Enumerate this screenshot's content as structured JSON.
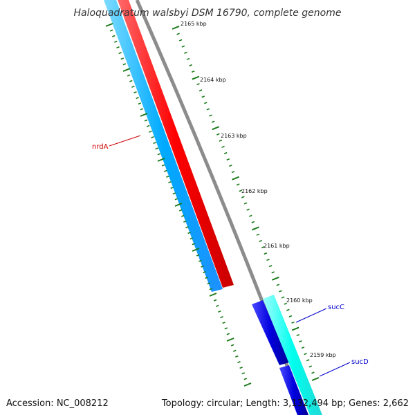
{
  "title": "Haloquadratum walsbyi DSM 16790, complete genome",
  "footer": {
    "accession": "Accession: NC_008212",
    "summary": "Topology: circular; Length: 3,132,494 bp; Genes: 2,662"
  },
  "ticks": [
    {
      "label": "2165 kbp"
    },
    {
      "label": "2164 kbp"
    },
    {
      "label": "2163 kbp"
    },
    {
      "label": "2162 kbp"
    },
    {
      "label": "2161 kbp"
    },
    {
      "label": "2160 kbp"
    },
    {
      "label": "2159 kbp"
    }
  ],
  "genes": [
    {
      "name": "nrdA",
      "color": "#cc0000"
    },
    {
      "name": "sucC",
      "color": "#0000cc"
    },
    {
      "name": "sucD",
      "color": "#0000cc"
    }
  ],
  "colors": {
    "forward_strand": "#ff0000",
    "reverse_strand_light": "#00bfff",
    "succinate_dark": "#0000dd",
    "succinate_cyan": "#00ffff",
    "backbone": "#808080",
    "ticks": "#1a7a1a"
  }
}
